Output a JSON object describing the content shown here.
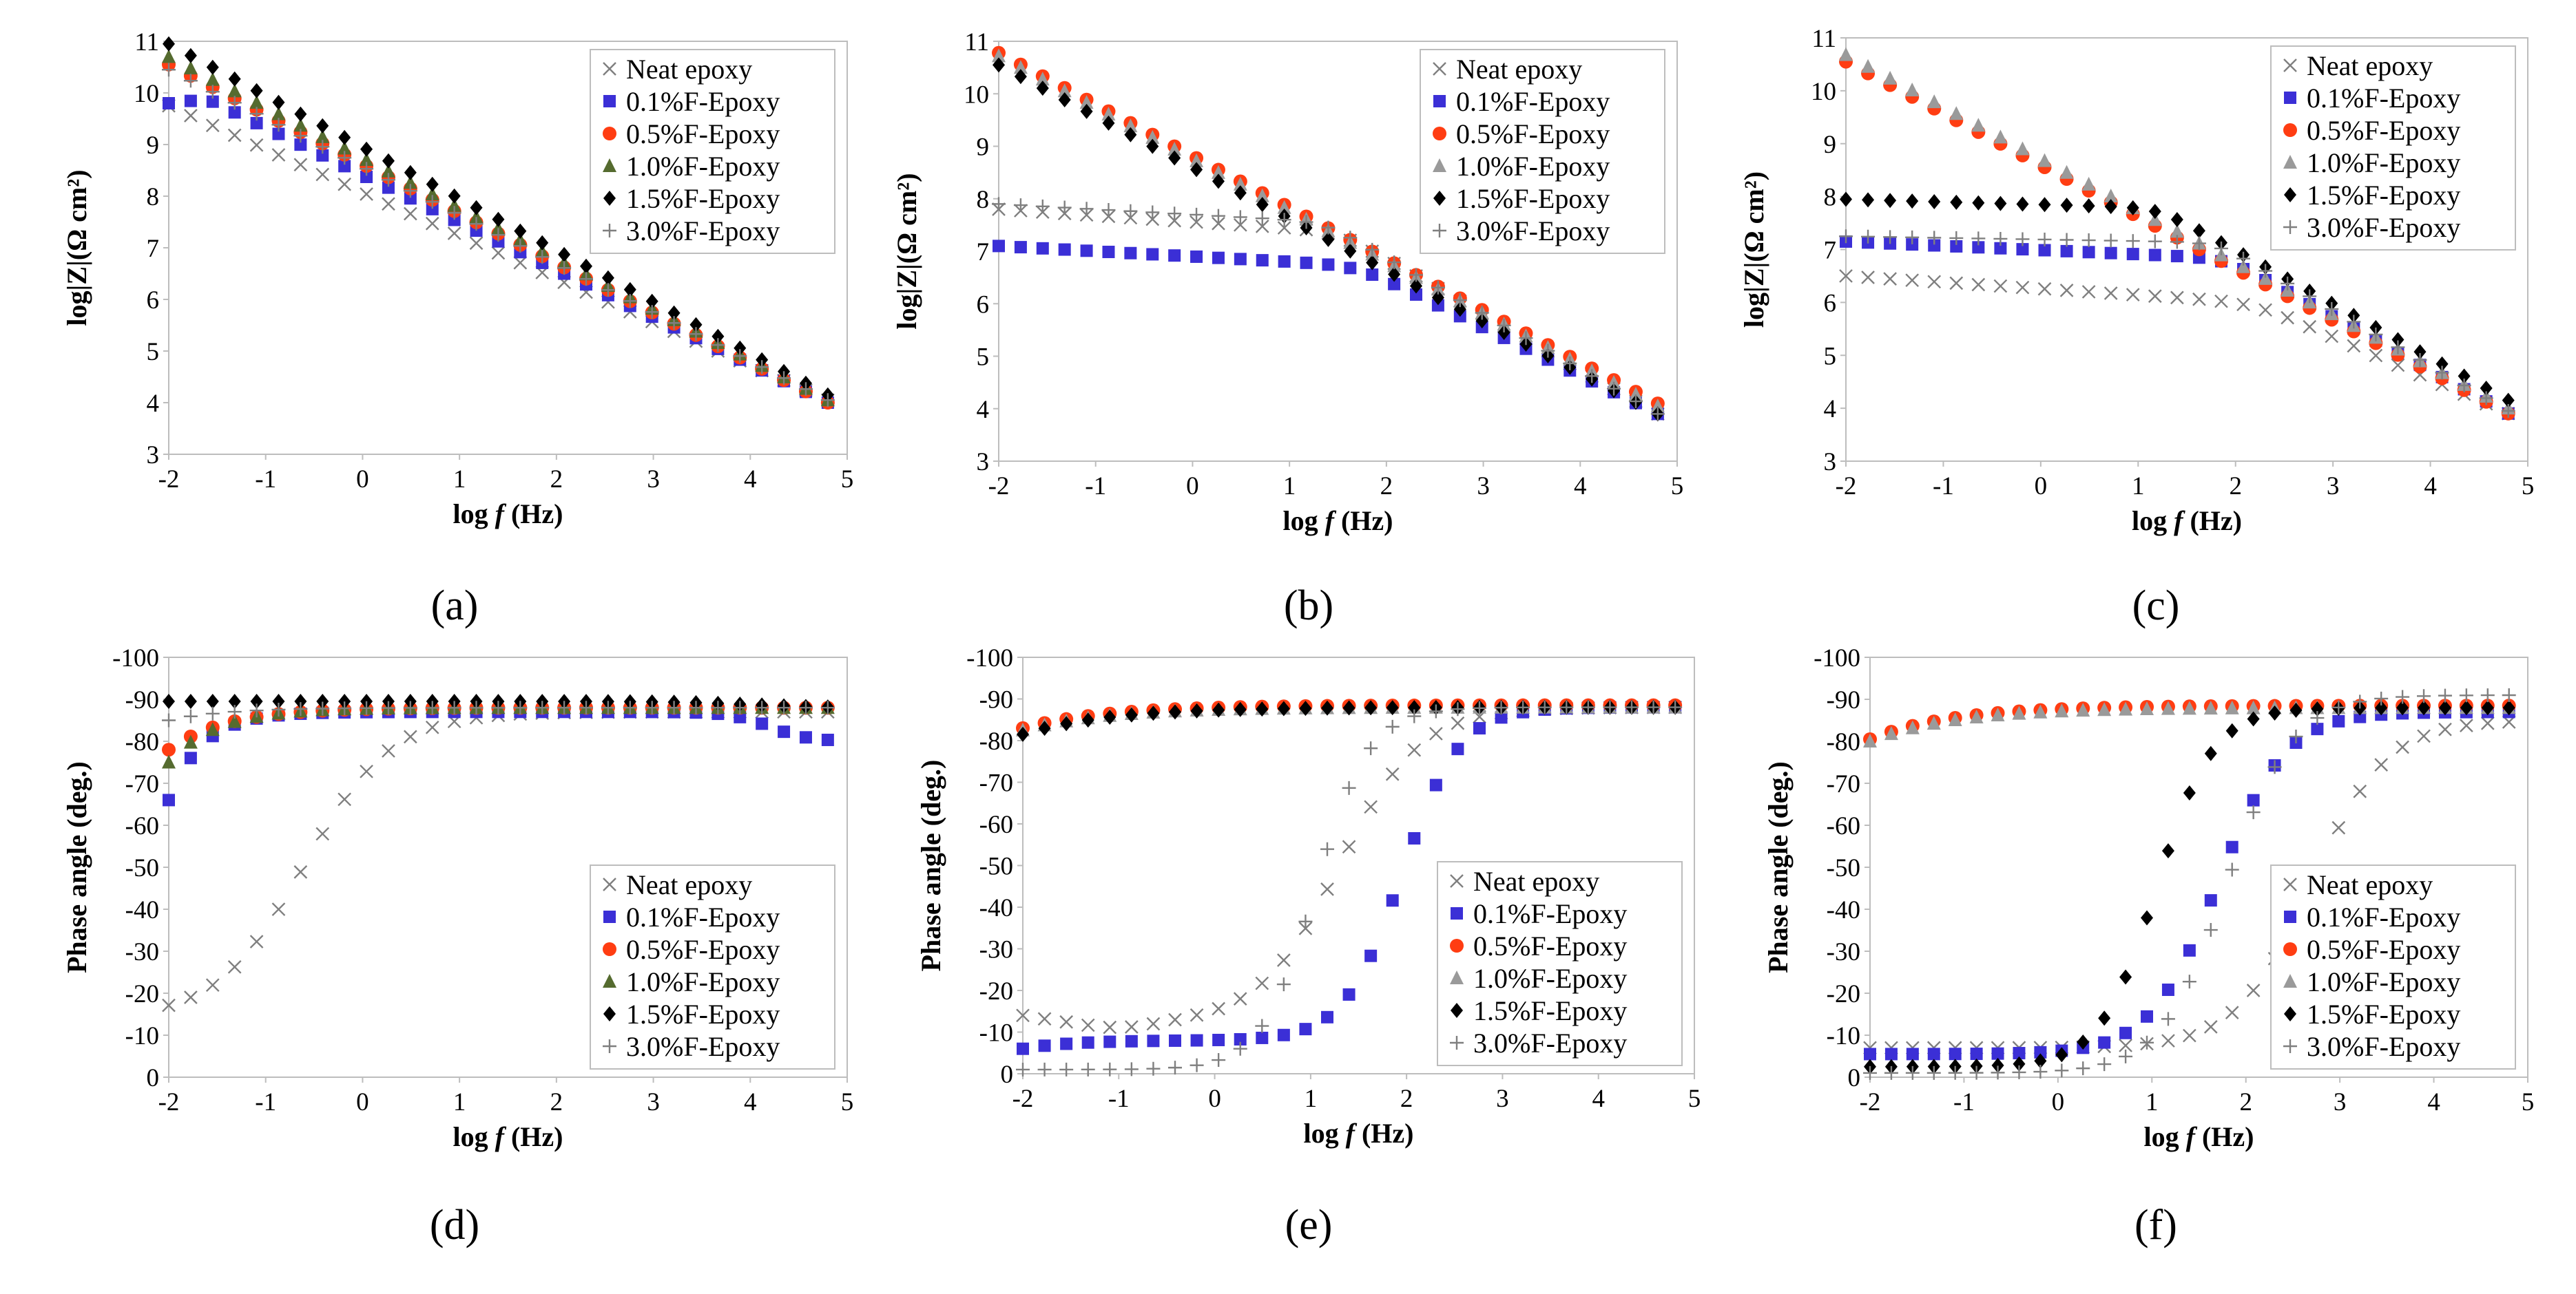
{
  "figure": {
    "legend_labels": [
      "Neat epoxy",
      "0.1%F-Epoxy",
      "0.5%F-Epoxy",
      "1.0%F-Epoxy",
      "1.5%F-Epoxy",
      "3.0%F-Epoxy"
    ]
  },
  "series_styles": [
    {
      "name": "Neat epoxy",
      "marker": "x",
      "color": "#7f7f7f"
    },
    {
      "name": "0.1%F-Epoxy",
      "marker": "square",
      "color": "#3b2fd6"
    },
    {
      "name": "0.5%F-Epoxy",
      "marker": "circle",
      "color": "#ff3d12"
    },
    {
      "name": "1.0%F-Epoxy",
      "marker": "triangle",
      "color": "#9a9a9a"
    },
    {
      "name": "1.5%F-Epoxy",
      "marker": "diamond",
      "color": "#000000"
    },
    {
      "name": "3.0%F-Epoxy",
      "marker": "plus",
      "color": "#7f7f7f"
    }
  ],
  "chart_data": [
    {
      "type": "scatter",
      "panel_label": "(a)",
      "xlabel_text": "log ",
      "xlabel_italic": "f",
      "xlabel_unit": " (Hz)",
      "ylabel": "log|Z|(Ω cm²)",
      "xlim": [
        -2,
        5
      ],
      "ylim": [
        3,
        11
      ],
      "xticks": [
        -2,
        -1,
        0,
        1,
        2,
        3,
        4,
        5
      ],
      "yticks": [
        3,
        4,
        5,
        6,
        7,
        8,
        9,
        10,
        11
      ],
      "ytick_labels": [
        "3",
        "4",
        "5",
        "6",
        "7",
        "8",
        "9",
        "10",
        "11"
      ],
      "legend_position": "top-right",
      "triangle_color": "#556b2f",
      "grid": false,
      "series": [
        {
          "name": "Neat epoxy",
          "x0": -2,
          "x1": 4.8,
          "n": 31,
          "curve": "linear",
          "params": {
            "a": 9.75,
            "b": 4.05
          }
        },
        {
          "name": "0.1%F-Epoxy",
          "x0": -2,
          "x1": 4.8,
          "n": 31,
          "curve": "linear_kink",
          "params": {
            "a": 9.8,
            "b": 4.0,
            "k": -1.6,
            "ka": 9.88
          }
        },
        {
          "name": "0.5%F-Epoxy",
          "x0": -2,
          "x1": 4.8,
          "n": 31,
          "curve": "linear",
          "params": {
            "a": 10.55,
            "b": 4.0
          }
        },
        {
          "name": "1.0%F-Epoxy",
          "x0": -2,
          "x1": 4.8,
          "n": 31,
          "curve": "linear",
          "params": {
            "a": 10.7,
            "b": 4.05
          }
        },
        {
          "name": "1.5%F-Epoxy",
          "x0": -2,
          "x1": 4.8,
          "n": 31,
          "curve": "linear",
          "params": {
            "a": 10.95,
            "b": 4.15
          }
        },
        {
          "name": "3.0%F-Epoxy",
          "x0": -2,
          "x1": 4.8,
          "n": 31,
          "curve": "linear",
          "params": {
            "a": 10.45,
            "b": 4.05
          }
        }
      ]
    },
    {
      "type": "scatter",
      "panel_label": "(b)",
      "xlabel_text": "log ",
      "xlabel_italic": "f",
      "xlabel_unit": " (Hz)",
      "ylabel": "log|Z|(Ω cm²)",
      "xlim": [
        -2,
        5
      ],
      "ylim": [
        3,
        11
      ],
      "xticks": [
        -2,
        -1,
        0,
        1,
        2,
        3,
        4,
        5
      ],
      "yticks": [
        3,
        4,
        5,
        6,
        7,
        8,
        9,
        10,
        11
      ],
      "ytick_labels": [
        "3",
        "4",
        "5",
        "6",
        "7",
        "8",
        "9",
        "10",
        "11"
      ],
      "legend_position": "top-right",
      "triangle_color": "#9a9a9a",
      "grid": false,
      "series": [
        {
          "name": "Neat epoxy",
          "x0": -2,
          "x1": 4.8,
          "n": 31,
          "curve": "plateau_decay",
          "params": {
            "plateau": 7.8,
            "rate": 0.96,
            "knee": 1.5,
            "lo": 3.9,
            "xend": 4.8,
            "pslope": 0.12
          }
        },
        {
          "name": "0.1%F-Epoxy",
          "x0": -2,
          "x1": 4.8,
          "n": 31,
          "curve": "plateau_decay",
          "params": {
            "plateau": 7.1,
            "rate": 0.96,
            "knee": 1.7,
            "lo": 3.9,
            "xend": 4.8,
            "pslope": 0.1
          }
        },
        {
          "name": "0.5%F-Epoxy",
          "x0": -2,
          "x1": 4.8,
          "n": 31,
          "curve": "linear",
          "params": {
            "a": 10.78,
            "b": 4.1
          }
        },
        {
          "name": "1.0%F-Epoxy",
          "x0": -2,
          "x1": 4.8,
          "n": 31,
          "curve": "linear",
          "params": {
            "a": 10.72,
            "b": 4.05
          }
        },
        {
          "name": "1.5%F-Epoxy",
          "x0": -2,
          "x1": 4.8,
          "n": 31,
          "curve": "linear",
          "params": {
            "a": 10.55,
            "b": 3.9
          }
        },
        {
          "name": "3.0%F-Epoxy",
          "x0": -2,
          "x1": 4.8,
          "n": 31,
          "curve": "plateau_decay",
          "params": {
            "plateau": 7.9,
            "rate": 0.96,
            "knee": 1.35,
            "lo": 3.9,
            "xend": 4.8,
            "pslope": 0.1
          }
        }
      ]
    },
    {
      "type": "scatter",
      "panel_label": "(c)",
      "xlabel_text": "log ",
      "xlabel_italic": "f",
      "xlabel_unit": " (Hz)",
      "ylabel": "log|Z|(Ω cm²)",
      "xlim": [
        -2,
        5
      ],
      "ylim": [
        3,
        11
      ],
      "xticks": [
        -2,
        -1,
        0,
        1,
        2,
        3,
        4,
        5
      ],
      "yticks": [
        3,
        4,
        5,
        6,
        7,
        8,
        9,
        10,
        11
      ],
      "ytick_labels": [
        "3",
        "4",
        "5",
        "6",
        "7",
        "8",
        "9",
        "10",
        "11"
      ],
      "legend_position": "top-right",
      "triangle_color": "#9a9a9a",
      "grid": false,
      "series": [
        {
          "name": "Neat epoxy",
          "x0": -2,
          "x1": 4.8,
          "n": 31,
          "curve": "plateau_decay",
          "params": {
            "plateau": 6.5,
            "rate": 0.97,
            "knee": 2.2,
            "lo": 3.9,
            "xend": 4.8,
            "pslope": 0.12
          }
        },
        {
          "name": "0.1%F-Epoxy",
          "x0": -2,
          "x1": 4.8,
          "n": 31,
          "curve": "plateau_decay",
          "params": {
            "plateau": 7.15,
            "rate": 0.97,
            "knee": 1.9,
            "lo": 3.9,
            "xend": 4.8,
            "pslope": 0.08
          }
        },
        {
          "name": "0.5%F-Epoxy",
          "x0": -2,
          "x1": 4.8,
          "n": 31,
          "curve": "linear",
          "params": {
            "a": 10.55,
            "b": 3.9
          }
        },
        {
          "name": "1.0%F-Epoxy",
          "x0": -2,
          "x1": 4.8,
          "n": 31,
          "curve": "linear",
          "params": {
            "a": 10.68,
            "b": 4.0
          }
        },
        {
          "name": "1.5%F-Epoxy",
          "x0": -2,
          "x1": 4.8,
          "n": 31,
          "curve": "plateau_decay",
          "params": {
            "plateau": 7.95,
            "rate": 0.96,
            "knee": 1.2,
            "lo": 4.15,
            "xend": 4.8,
            "pslope": 0.05
          }
        },
        {
          "name": "3.0%F-Epoxy",
          "x0": -2,
          "x1": 4.8,
          "n": 31,
          "curve": "plateau_decay",
          "params": {
            "plateau": 7.25,
            "rate": 0.96,
            "knee": 1.8,
            "lo": 3.95,
            "xend": 4.8,
            "pslope": 0.03
          }
        }
      ]
    },
    {
      "type": "scatter",
      "panel_label": "(d)",
      "xlabel_text": "log ",
      "xlabel_italic": "f",
      "xlabel_unit": " (Hz)",
      "ylabel": "Phase angle (deg.)",
      "xlim": [
        -2,
        5
      ],
      "ylim": [
        0,
        100
      ],
      "xticks": [
        -2,
        -1,
        0,
        1,
        2,
        3,
        4,
        5
      ],
      "yticks": [
        0,
        10,
        20,
        30,
        40,
        50,
        60,
        70,
        80,
        90,
        100
      ],
      "ytick_labels": [
        "0",
        "-10",
        "-20",
        "-30",
        "-40",
        "-50",
        "-60",
        "-70",
        "-80",
        "-90",
        "-100"
      ],
      "legend_position": "bottom-right",
      "triangle_color": "#556b2f",
      "grid": false,
      "series": [
        {
          "name": "Neat epoxy",
          "x0": -2,
          "x1": 4.8,
          "n": 31,
          "curve": "sigmoid",
          "params": {
            "lo": 14,
            "hi": 87,
            "mid": -0.6,
            "w": 0.45
          }
        },
        {
          "name": "0.1%F-Epoxy",
          "x0": -2,
          "x1": 4.8,
          "n": 31,
          "curve": "rise_drop",
          "params": {
            "base": 87,
            "tau": 0.35,
            "amp": 21,
            "drop": 7,
            "dmid": 4.2,
            "dw": 0.2
          }
        },
        {
          "name": "0.5%F-Epoxy",
          "x0": -2,
          "x1": 4.8,
          "n": 31,
          "curve": "rise_drop",
          "params": {
            "base": 88,
            "tau": 0.6,
            "amp": 10,
            "drop": 0,
            "dmid": 6,
            "dw": 0.3
          }
        },
        {
          "name": "1.0%F-Epoxy",
          "x0": -2,
          "x1": 4.8,
          "n": 31,
          "curve": "rise_drop",
          "params": {
            "base": 88,
            "tau": 0.5,
            "amp": 13,
            "drop": 0,
            "dmid": 6,
            "dw": 0.3
          }
        },
        {
          "name": "1.5%F-Epoxy",
          "x0": -2,
          "x1": 4.8,
          "n": 31,
          "curve": "rise_drop",
          "params": {
            "base": 89.5,
            "tau": 0.5,
            "amp": 0,
            "drop": 1.5,
            "dmid": 4.0,
            "dw": 0.4
          }
        },
        {
          "name": "3.0%F-Epoxy",
          "x0": -2,
          "x1": 4.8,
          "n": 31,
          "curve": "rise_drop",
          "params": {
            "base": 88,
            "tau": 0.6,
            "amp": 3,
            "drop": 0,
            "dmid": 6,
            "dw": 0.3
          }
        }
      ]
    },
    {
      "type": "scatter",
      "panel_label": "(e)",
      "xlabel_text": "log ",
      "xlabel_italic": "f",
      "xlabel_unit": " (Hz)",
      "ylabel": "Phase angle (deg.)",
      "xlim": [
        -2,
        5
      ],
      "ylim": [
        0,
        100
      ],
      "xticks": [
        -2,
        -1,
        0,
        1,
        2,
        3,
        4,
        5
      ],
      "yticks": [
        0,
        10,
        20,
        30,
        40,
        50,
        60,
        70,
        80,
        90,
        100
      ],
      "ytick_labels": [
        "0",
        "-10",
        "-20",
        "-30",
        "-40",
        "-50",
        "-60",
        "-70",
        "-80",
        "-90",
        "-100"
      ],
      "legend_position": "bottom-right",
      "triangle_color": "#9a9a9a",
      "grid": false,
      "series": [
        {
          "name": "Neat epoxy",
          "x0": -2,
          "x1": 4.8,
          "n": 31,
          "curve": "dip_sigmoid",
          "params": {
            "lo": 12,
            "hi": 88,
            "mid": 1.3,
            "w": 0.42,
            "lead": 14,
            "dipx": -1.0,
            "dipd": 1.5
          }
        },
        {
          "name": "0.1%F-Epoxy",
          "x0": -2,
          "x1": 4.8,
          "n": 31,
          "curve": "dip_sigmoid",
          "params": {
            "lo": 8,
            "hi": 88,
            "mid": 1.95,
            "w": 0.3,
            "lead": 6,
            "dipx": 5,
            "dipd": 0
          }
        },
        {
          "name": "0.5%F-Epoxy",
          "x0": -2,
          "x1": 4.8,
          "n": 31,
          "curve": "rise_drop",
          "params": {
            "base": 88.5,
            "tau": 0.9,
            "amp": 5.5,
            "drop": 0,
            "dmid": 6,
            "dw": 0.3
          }
        },
        {
          "name": "1.0%F-Epoxy",
          "x0": -2,
          "x1": 4.8,
          "n": 31,
          "curve": "rise_drop",
          "params": {
            "base": 88,
            "tau": 0.9,
            "amp": 5.5,
            "drop": 0,
            "dmid": 6,
            "dw": 0.3
          }
        },
        {
          "name": "1.5%F-Epoxy",
          "x0": -2,
          "x1": 4.8,
          "n": 31,
          "curve": "rise_drop",
          "params": {
            "base": 88,
            "tau": 0.9,
            "amp": 6.5,
            "drop": 0,
            "dmid": 6,
            "dw": 0.3
          }
        },
        {
          "name": "3.0%F-Epoxy",
          "x0": -2,
          "x1": 4.8,
          "n": 31,
          "curve": "sigmoid",
          "params": {
            "lo": 1,
            "hi": 88,
            "mid": 1.05,
            "w": 0.28
          }
        }
      ]
    },
    {
      "type": "scatter",
      "panel_label": "(f)",
      "xlabel_text": "log ",
      "xlabel_italic": "f",
      "xlabel_unit": " (Hz)",
      "ylabel": "Phase angle (deg.)",
      "xlim": [
        -2,
        5
      ],
      "ylim": [
        0,
        100
      ],
      "xticks": [
        -2,
        -1,
        0,
        1,
        2,
        3,
        4,
        5
      ],
      "yticks": [
        0,
        10,
        20,
        30,
        40,
        50,
        60,
        70,
        80,
        90,
        100
      ],
      "ytick_labels": [
        "0",
        "-10",
        "-20",
        "-30",
        "-40",
        "-50",
        "-60",
        "-70",
        "-80",
        "-90",
        "-100"
      ],
      "legend_position": "bottom-right",
      "triangle_color": "#9a9a9a",
      "grid": false,
      "series": [
        {
          "name": "Neat epoxy",
          "x0": -2,
          "x1": 4.8,
          "n": 31,
          "curve": "sigmoid",
          "params": {
            "lo": 7,
            "hi": 85,
            "mid": 2.7,
            "w": 0.4
          }
        },
        {
          "name": "0.1%F-Epoxy",
          "x0": -2,
          "x1": 4.8,
          "n": 31,
          "curve": "sigmoid",
          "params": {
            "lo": 5.5,
            "hi": 87,
            "mid": 1.7,
            "w": 0.36
          }
        },
        {
          "name": "0.5%F-Epoxy",
          "x0": -2,
          "x1": 4.8,
          "n": 31,
          "curve": "rise_drop",
          "params": {
            "base": 88.5,
            "tau": 0.9,
            "amp": 8,
            "drop": 0,
            "dmid": 6,
            "dw": 0.3
          }
        },
        {
          "name": "1.0%F-Epoxy",
          "x0": -2,
          "x1": 4.8,
          "n": 31,
          "curve": "rise_drop",
          "params": {
            "base": 88,
            "tau": 0.9,
            "amp": 8,
            "drop": 0,
            "dmid": 6,
            "dw": 0.3
          }
        },
        {
          "name": "1.5%F-Epoxy",
          "x0": -2,
          "x1": 4.8,
          "n": 31,
          "curve": "sigmoid",
          "params": {
            "lo": 2.5,
            "hi": 88,
            "mid": 1.05,
            "w": 0.3
          }
        },
        {
          "name": "3.0%F-Epoxy",
          "x0": -2,
          "x1": 4.8,
          "n": 31,
          "curve": "sigmoid",
          "params": {
            "lo": 1,
            "hi": 91,
            "mid": 1.8,
            "w": 0.35
          }
        }
      ]
    }
  ]
}
